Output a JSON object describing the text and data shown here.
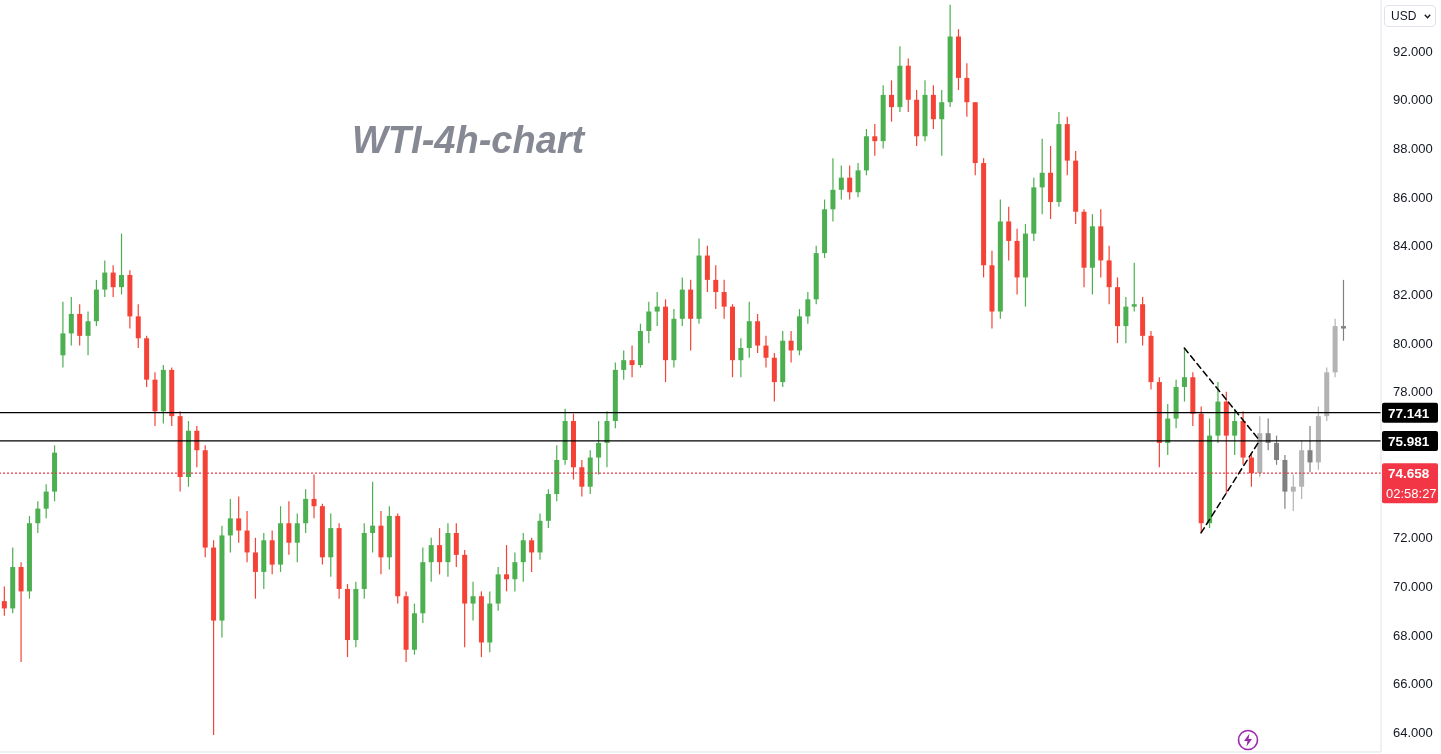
{
  "chart_data": {
    "type": "candlestick",
    "title": "WTI-4h-chart",
    "ylabel": "USD",
    "categories": [
      null,
      null,
      null,
      null,
      null,
      null,
      null,
      null,
      null,
      null,
      null,
      null,
      null,
      null,
      null,
      null,
      null,
      null,
      null,
      null,
      null,
      null,
      null,
      null,
      null,
      null,
      null,
      null,
      null,
      null,
      null,
      null,
      null,
      null,
      null,
      null,
      null,
      null,
      null,
      null,
      null,
      null,
      null,
      null,
      null,
      null,
      null,
      null,
      null,
      null,
      null,
      null,
      null,
      null,
      null,
      null,
      null,
      null,
      null,
      null,
      null,
      null,
      null,
      null,
      null,
      null,
      null,
      null,
      null,
      null,
      null,
      null,
      null,
      null,
      null,
      null,
      null,
      null,
      null,
      null,
      null,
      null,
      null,
      null,
      null,
      null,
      null,
      null,
      null,
      null,
      null,
      null,
      null,
      null,
      null,
      null,
      null,
      null,
      null,
      null,
      null,
      null,
      null,
      null,
      null,
      null,
      null,
      null,
      null,
      null,
      null,
      null,
      null,
      null,
      null,
      null,
      null,
      null,
      null,
      null,
      null,
      null,
      null,
      null,
      null,
      null,
      null,
      null,
      null,
      null,
      null,
      null,
      null,
      null,
      null,
      null,
      null,
      null,
      null,
      null,
      null,
      null,
      null,
      null,
      null,
      null,
      null,
      null,
      null,
      null,
      null,
      null,
      null,
      null,
      null,
      null,
      null,
      null,
      null,
      null,
      null,
      null,
      null,
      null,
      null
    ],
    "series": [
      {
        "ohlc": [
          [
            69.4,
            70.0,
            68.8,
            69.1
          ],
          [
            69.1,
            71.6,
            68.9,
            70.8
          ],
          [
            70.8,
            71.0,
            66.9,
            69.8
          ],
          [
            69.8,
            72.9,
            69.5,
            72.6
          ],
          [
            72.6,
            73.5,
            72.2,
            73.2
          ],
          [
            73.2,
            74.2,
            72.8,
            73.9
          ],
          [
            73.9,
            75.8,
            73.5,
            75.5
          ],
          [
            79.5,
            81.7,
            79.0,
            80.4
          ],
          [
            80.4,
            81.9,
            79.9,
            81.2
          ],
          [
            81.2,
            81.6,
            79.9,
            80.3
          ],
          [
            80.3,
            81.3,
            79.5,
            80.9
          ],
          [
            80.9,
            82.6,
            80.7,
            82.2
          ],
          [
            82.2,
            83.4,
            81.9,
            82.9
          ],
          [
            82.9,
            83.2,
            81.9,
            82.3
          ],
          [
            82.3,
            84.5,
            82.0,
            82.8
          ],
          [
            82.8,
            83.0,
            80.6,
            81.1
          ],
          [
            81.1,
            81.6,
            79.8,
            80.2
          ],
          [
            80.2,
            80.3,
            78.2,
            78.5
          ],
          [
            78.5,
            78.8,
            76.6,
            77.2
          ],
          [
            77.2,
            79.1,
            76.7,
            78.9
          ],
          [
            78.9,
            79.0,
            76.6,
            77.0
          ],
          [
            77.0,
            77.2,
            73.9,
            74.5
          ],
          [
            74.5,
            76.8,
            74.1,
            76.4
          ],
          [
            76.4,
            76.6,
            74.9,
            75.6
          ],
          [
            75.6,
            75.8,
            71.2,
            71.6
          ],
          [
            71.6,
            71.9,
            63.9,
            68.6
          ],
          [
            68.6,
            72.5,
            67.9,
            72.1
          ],
          [
            72.1,
            73.6,
            71.4,
            72.8
          ],
          [
            72.8,
            73.7,
            71.8,
            72.3
          ],
          [
            72.3,
            73.1,
            71.0,
            71.4
          ],
          [
            71.4,
            72.0,
            69.5,
            70.6
          ],
          [
            70.6,
            72.2,
            69.9,
            71.9
          ],
          [
            71.9,
            72.3,
            70.5,
            70.9
          ],
          [
            70.9,
            73.3,
            70.6,
            72.6
          ],
          [
            72.6,
            73.5,
            71.3,
            71.8
          ],
          [
            71.8,
            73.0,
            71.0,
            72.6
          ],
          [
            72.6,
            74.0,
            72.2,
            73.6
          ],
          [
            73.6,
            74.6,
            72.8,
            73.3
          ],
          [
            73.3,
            73.4,
            70.9,
            71.2
          ],
          [
            71.2,
            73.0,
            70.4,
            72.4
          ],
          [
            72.4,
            72.6,
            69.5,
            69.9
          ],
          [
            69.9,
            70.1,
            67.1,
            67.8
          ],
          [
            67.8,
            70.2,
            67.5,
            69.9
          ],
          [
            69.9,
            72.6,
            69.5,
            72.2
          ],
          [
            72.2,
            74.3,
            71.4,
            72.5
          ],
          [
            72.5,
            73.1,
            70.5,
            71.2
          ],
          [
            71.2,
            73.3,
            70.7,
            72.9
          ],
          [
            72.9,
            73.0,
            69.3,
            69.6
          ],
          [
            69.6,
            69.8,
            66.9,
            67.4
          ],
          [
            67.4,
            69.3,
            67.2,
            68.9
          ],
          [
            68.9,
            71.6,
            68.5,
            71.0
          ],
          [
            71.0,
            72.0,
            70.2,
            71.7
          ],
          [
            71.7,
            72.4,
            70.5,
            71.0
          ],
          [
            71.0,
            72.6,
            70.4,
            72.2
          ],
          [
            72.2,
            72.6,
            70.8,
            71.3
          ],
          [
            71.3,
            71.5,
            67.5,
            69.3
          ],
          [
            69.3,
            70.2,
            68.6,
            69.6
          ],
          [
            69.6,
            69.8,
            67.1,
            67.7
          ],
          [
            67.7,
            69.8,
            67.3,
            69.3
          ],
          [
            69.3,
            70.8,
            69.0,
            70.5
          ],
          [
            70.5,
            71.7,
            69.8,
            70.3
          ],
          [
            70.3,
            71.4,
            69.8,
            71.0
          ],
          [
            71.0,
            72.2,
            70.2,
            71.9
          ],
          [
            71.9,
            72.0,
            70.6,
            71.4
          ],
          [
            71.4,
            73.0,
            71.1,
            72.7
          ],
          [
            72.7,
            74.0,
            72.4,
            73.8
          ],
          [
            73.8,
            75.8,
            73.5,
            75.2
          ],
          [
            75.2,
            77.3,
            75.0,
            76.8
          ],
          [
            76.8,
            77.1,
            74.4,
            74.9
          ],
          [
            74.9,
            75.2,
            73.7,
            74.1
          ],
          [
            74.1,
            75.6,
            73.8,
            75.3
          ],
          [
            75.3,
            76.8,
            74.6,
            75.9
          ],
          [
            75.9,
            77.2,
            74.9,
            76.8
          ],
          [
            76.8,
            79.2,
            76.5,
            78.9
          ],
          [
            78.9,
            79.7,
            78.5,
            79.3
          ],
          [
            79.3,
            79.9,
            78.6,
            79.1
          ],
          [
            79.1,
            80.8,
            79.0,
            80.5
          ],
          [
            80.5,
            81.7,
            80.0,
            81.3
          ],
          [
            81.3,
            82.1,
            80.7,
            81.5
          ],
          [
            81.5,
            81.8,
            78.4,
            79.3
          ],
          [
            79.3,
            81.4,
            79.0,
            81.0
          ],
          [
            81.0,
            82.7,
            80.7,
            82.2
          ],
          [
            82.2,
            82.6,
            79.7,
            81.0
          ],
          [
            81.0,
            84.3,
            80.8,
            83.6
          ],
          [
            83.6,
            84.0,
            82.1,
            82.6
          ],
          [
            82.6,
            83.2,
            81.4,
            82.1
          ],
          [
            82.1,
            82.6,
            81.0,
            81.5
          ],
          [
            81.5,
            81.6,
            78.6,
            79.3
          ],
          [
            79.3,
            80.2,
            78.6,
            79.8
          ],
          [
            79.8,
            81.7,
            79.4,
            80.9
          ],
          [
            80.9,
            81.2,
            79.6,
            79.9
          ],
          [
            79.9,
            80.3,
            79.0,
            79.4
          ],
          [
            79.4,
            79.6,
            77.6,
            78.4
          ],
          [
            78.4,
            80.5,
            78.2,
            80.1
          ],
          [
            80.1,
            80.5,
            79.2,
            79.7
          ],
          [
            79.7,
            81.4,
            79.5,
            81.1
          ],
          [
            81.1,
            82.1,
            80.8,
            81.8
          ],
          [
            81.8,
            84.0,
            81.6,
            83.7
          ],
          [
            83.7,
            85.9,
            83.5,
            85.5
          ],
          [
            85.5,
            87.6,
            85.0,
            86.3
          ],
          [
            86.3,
            87.3,
            85.9,
            86.8
          ],
          [
            86.8,
            87.3,
            85.9,
            86.2
          ],
          [
            86.2,
            87.4,
            86.0,
            87.1
          ],
          [
            87.1,
            88.8,
            86.9,
            88.5
          ],
          [
            88.5,
            89.0,
            87.7,
            88.3
          ],
          [
            88.3,
            90.6,
            88.0,
            90.2
          ],
          [
            90.2,
            90.8,
            89.1,
            89.7
          ],
          [
            89.7,
            92.2,
            89.5,
            91.4
          ],
          [
            91.4,
            91.7,
            89.5,
            90.0
          ],
          [
            90.0,
            90.4,
            88.1,
            88.5
          ],
          [
            88.5,
            90.8,
            88.3,
            90.2
          ],
          [
            90.2,
            90.6,
            88.8,
            89.2
          ],
          [
            89.2,
            90.4,
            87.7,
            89.9
          ],
          [
            89.9,
            93.9,
            89.7,
            92.6
          ],
          [
            92.6,
            92.9,
            90.4,
            90.9
          ],
          [
            90.9,
            91.5,
            89.3,
            89.9
          ],
          [
            89.9,
            89.9,
            86.9,
            87.4
          ],
          [
            87.4,
            87.6,
            82.7,
            83.2
          ],
          [
            83.2,
            83.8,
            80.6,
            81.3
          ],
          [
            81.3,
            85.9,
            81.0,
            85.0
          ],
          [
            85.0,
            85.6,
            83.4,
            84.2
          ],
          [
            84.2,
            84.7,
            82.0,
            82.7
          ],
          [
            82.7,
            84.9,
            81.5,
            84.5
          ],
          [
            84.5,
            86.8,
            84.2,
            86.4
          ],
          [
            86.4,
            88.4,
            85.3,
            87.0
          ],
          [
            87.0,
            88.1,
            85.1,
            85.8
          ],
          [
            85.8,
            89.5,
            85.6,
            89.0
          ],
          [
            89.0,
            89.3,
            86.9,
            87.5
          ],
          [
            87.5,
            87.9,
            84.9,
            85.4
          ],
          [
            85.4,
            85.5,
            82.3,
            83.1
          ],
          [
            83.1,
            85.3,
            82.0,
            84.8
          ],
          [
            84.8,
            85.5,
            82.7,
            83.4
          ],
          [
            83.4,
            84.0,
            81.6,
            82.3
          ],
          [
            82.3,
            82.7,
            80.0,
            80.7
          ],
          [
            80.7,
            81.9,
            80.0,
            81.5
          ],
          [
            81.5,
            83.3,
            81.3,
            81.6
          ],
          [
            81.6,
            81.9,
            79.9,
            80.3
          ],
          [
            80.3,
            80.5,
            78.1,
            78.4
          ],
          [
            78.4,
            78.6,
            74.9,
            75.9
          ],
          [
            75.9,
            77.5,
            75.4,
            76.9
          ],
          [
            76.9,
            78.5,
            76.5,
            78.2
          ],
          [
            78.2,
            79.8,
            77.6,
            78.6
          ],
          [
            78.6,
            78.8,
            76.6,
            77.1
          ],
          [
            77.1,
            77.4,
            72.2,
            72.6
          ],
          [
            72.6,
            76.9,
            72.4,
            76.2
          ],
          [
            76.2,
            78.4,
            75.9,
            77.6
          ],
          [
            77.6,
            78.0,
            73.8,
            76.2
          ],
          [
            76.2,
            77.3,
            75.4,
            76.8
          ],
          [
            76.8,
            77.2,
            75.0,
            75.3
          ],
          [
            75.3,
            75.5,
            74.1,
            74.658
          ],
          null,
          null,
          null,
          null,
          null,
          null,
          null,
          null,
          null,
          null,
          null,
          null,
          null,
          null,
          null
        ],
        "colors": [
          "#f44336",
          "#4caf50",
          "#f44336",
          "#4caf50",
          "#4caf50",
          "#4caf50",
          "#4caf50",
          "#4caf50",
          "#4caf50",
          "#f44336",
          "#4caf50",
          "#4caf50",
          "#4caf50",
          "#f44336",
          "#4caf50",
          "#f44336",
          "#f44336",
          "#f44336",
          "#f44336",
          "#4caf50",
          "#f44336",
          "#f44336",
          "#4caf50",
          "#f44336",
          "#f44336",
          "#f44336",
          "#4caf50",
          "#4caf50",
          "#f44336",
          "#f44336",
          "#f44336",
          "#4caf50",
          "#f44336",
          "#4caf50",
          "#f44336",
          "#4caf50",
          "#4caf50",
          "#f44336",
          "#f44336",
          "#4caf50",
          "#f44336",
          "#f44336",
          "#4caf50",
          "#4caf50",
          "#4caf50",
          "#f44336",
          "#4caf50",
          "#f44336",
          "#f44336",
          "#4caf50",
          "#4caf50",
          "#4caf50",
          "#f44336",
          "#4caf50",
          "#f44336",
          "#f44336",
          "#4caf50",
          "#f44336",
          "#4caf50",
          "#4caf50",
          "#f44336",
          "#4caf50",
          "#4caf50",
          "#f44336",
          "#4caf50",
          "#4caf50",
          "#4caf50",
          "#4caf50",
          "#f44336",
          "#f44336",
          "#4caf50",
          "#4caf50",
          "#4caf50",
          "#4caf50",
          "#4caf50",
          "#f44336",
          "#4caf50",
          "#4caf50",
          "#4caf50",
          "#f44336",
          "#4caf50",
          "#4caf50",
          "#f44336",
          "#4caf50",
          "#f44336",
          "#f44336",
          "#f44336",
          "#f44336",
          "#4caf50",
          "#4caf50",
          "#f44336",
          "#f44336",
          "#f44336",
          "#4caf50",
          "#f44336",
          "#4caf50",
          "#4caf50",
          "#4caf50",
          "#4caf50",
          "#4caf50",
          "#4caf50",
          "#f44336",
          "#4caf50",
          "#4caf50",
          "#f44336",
          "#4caf50",
          "#f44336",
          "#4caf50",
          "#f44336",
          "#f44336",
          "#4caf50",
          "#f44336",
          "#4caf50",
          "#4caf50",
          "#f44336",
          "#f44336",
          "#f44336",
          "#f44336",
          "#f44336",
          "#4caf50",
          "#f44336",
          "#f44336",
          "#4caf50",
          "#4caf50",
          "#4caf50",
          "#f44336",
          "#4caf50",
          "#f44336",
          "#f44336",
          "#f44336",
          "#4caf50",
          "#f44336",
          "#f44336",
          "#f44336",
          "#4caf50",
          "#4caf50",
          "#f44336",
          "#f44336",
          "#f44336",
          "#4caf50",
          "#4caf50",
          "#4caf50",
          "#f44336",
          "#f44336",
          "#4caf50",
          "#4caf50",
          "#f44336",
          "#4caf50",
          "#f44336",
          "#f44336",
          null,
          null,
          null,
          null,
          null,
          null,
          null,
          null,
          null,
          null,
          null,
          null,
          null,
          null,
          null
        ]
      },
      {
        "ohlc": [
          null,
          null,
          null,
          null,
          null,
          null,
          null,
          null,
          null,
          null,
          null,
          null,
          null,
          null,
          null,
          null,
          null,
          null,
          null,
          null,
          null,
          null,
          null,
          null,
          null,
          null,
          null,
          null,
          null,
          null,
          null,
          null,
          null,
          null,
          null,
          null,
          null,
          null,
          null,
          null,
          null,
          null,
          null,
          null,
          null,
          null,
          null,
          null,
          null,
          null,
          null,
          null,
          null,
          null,
          null,
          null,
          null,
          null,
          null,
          null,
          null,
          null,
          null,
          null,
          null,
          null,
          null,
          null,
          null,
          null,
          null,
          null,
          null,
          null,
          null,
          null,
          null,
          null,
          null,
          null,
          null,
          null,
          null,
          null,
          null,
          null,
          null,
          null,
          null,
          null,
          null,
          null,
          null,
          null,
          null,
          null,
          null,
          null,
          null,
          null,
          null,
          null,
          null,
          null,
          null,
          null,
          null,
          null,
          null,
          null,
          null,
          null,
          null,
          null,
          null,
          null,
          null,
          null,
          null,
          null,
          null,
          null,
          null,
          null,
          null,
          null,
          null,
          null,
          null,
          null,
          null,
          null,
          null,
          null,
          null,
          null,
          null,
          null,
          null,
          null,
          null,
          null,
          null,
          null,
          null,
          null,
          null,
          null,
          null,
          null,
          [
            74.658,
            77.0,
            74.5,
            76.3
          ],
          [
            76.3,
            76.9,
            75.6,
            75.9
          ],
          [
            75.9,
            76.2,
            75.0,
            75.2
          ],
          [
            75.2,
            75.4,
            73.2,
            73.9
          ],
          [
            73.9,
            74.6,
            73.1,
            74.1
          ],
          [
            74.1,
            76.0,
            73.6,
            75.6
          ],
          [
            75.6,
            76.6,
            74.7,
            75.1
          ],
          [
            75.1,
            77.4,
            74.8,
            77.0
          ],
          [
            77.0,
            79.0,
            76.8,
            78.8
          ],
          [
            78.8,
            81.0,
            78.6,
            80.7
          ],
          [
            80.7,
            82.6,
            80.1,
            80.6
          ],
          null,
          null,
          null,
          null
        ],
        "colors": [
          null,
          null,
          null,
          null,
          null,
          null,
          null,
          null,
          null,
          null,
          null,
          null,
          null,
          null,
          null,
          null,
          null,
          null,
          null,
          null,
          null,
          null,
          null,
          null,
          null,
          null,
          null,
          null,
          null,
          null,
          null,
          null,
          null,
          null,
          null,
          null,
          null,
          null,
          null,
          null,
          null,
          null,
          null,
          null,
          null,
          null,
          null,
          null,
          null,
          null,
          null,
          null,
          null,
          null,
          null,
          null,
          null,
          null,
          null,
          null,
          null,
          null,
          null,
          null,
          null,
          null,
          null,
          null,
          null,
          null,
          null,
          null,
          null,
          null,
          null,
          null,
          null,
          null,
          null,
          null,
          null,
          null,
          null,
          null,
          null,
          null,
          null,
          null,
          null,
          null,
          null,
          null,
          null,
          null,
          null,
          null,
          null,
          null,
          null,
          null,
          null,
          null,
          null,
          null,
          null,
          null,
          null,
          null,
          null,
          null,
          null,
          null,
          null,
          null,
          null,
          null,
          null,
          null,
          null,
          null,
          null,
          null,
          null,
          null,
          null,
          null,
          null,
          null,
          null,
          null,
          null,
          null,
          null,
          null,
          null,
          null,
          null,
          null,
          null,
          null,
          null,
          null,
          null,
          null,
          null,
          null,
          null,
          null,
          null,
          null,
          "#b3b3b3",
          "#808080",
          "#808080",
          "#808080",
          "#b3b3b3",
          "#b3b3b3",
          "#808080",
          "#b3b3b3",
          "#b3b3b3",
          "#b3b3b3",
          "#808080",
          null,
          null,
          null,
          null
        ]
      },
      {
        "type": "line",
        "color": "#000000",
        "line_style": "dashed",
        "values": [
          null,
          null,
          null,
          null,
          null,
          null,
          null,
          null,
          null,
          null,
          null,
          null,
          null,
          null,
          null,
          null,
          null,
          null,
          null,
          null,
          null,
          null,
          null,
          null,
          null,
          null,
          null,
          null,
          null,
          null,
          null,
          null,
          null,
          null,
          null,
          null,
          null,
          null,
          null,
          null,
          null,
          null,
          null,
          null,
          null,
          null,
          null,
          null,
          null,
          null,
          null,
          null,
          null,
          null,
          null,
          null,
          null,
          null,
          null,
          null,
          null,
          null,
          null,
          null,
          null,
          null,
          null,
          null,
          null,
          null,
          null,
          null,
          null,
          null,
          null,
          null,
          null,
          null,
          null,
          null,
          null,
          null,
          null,
          null,
          null,
          null,
          null,
          null,
          null,
          null,
          null,
          null,
          null,
          null,
          null,
          null,
          null,
          null,
          null,
          null,
          null,
          null,
          null,
          null,
          null,
          null,
          null,
          null,
          null,
          null,
          null,
          null,
          null,
          null,
          null,
          null,
          null,
          null,
          null,
          null,
          null,
          null,
          null,
          null,
          null,
          null,
          null,
          null,
          null,
          null,
          null,
          null,
          null,
          null,
          null,
          null,
          null,
          null,
          null,
          null,
          null,
          79.8,
          null,
          null,
          null,
          null,
          null,
          null,
          null,
          null,
          76.0,
          null,
          null,
          null,
          null,
          null,
          null,
          null,
          null,
          null,
          null,
          null,
          null,
          null,
          null
        ]
      },
      {
        "type": "line",
        "color": "#000000",
        "line_style": "dashed",
        "values": [
          null,
          null,
          null,
          null,
          null,
          null,
          null,
          null,
          null,
          null,
          null,
          null,
          null,
          null,
          null,
          null,
          null,
          null,
          null,
          null,
          null,
          null,
          null,
          null,
          null,
          null,
          null,
          null,
          null,
          null,
          null,
          null,
          null,
          null,
          null,
          null,
          null,
          null,
          null,
          null,
          null,
          null,
          null,
          null,
          null,
          null,
          null,
          null,
          null,
          null,
          null,
          null,
          null,
          null,
          null,
          null,
          null,
          null,
          null,
          null,
          null,
          null,
          null,
          null,
          null,
          null,
          null,
          null,
          null,
          null,
          null,
          null,
          null,
          null,
          null,
          null,
          null,
          null,
          null,
          null,
          null,
          null,
          null,
          null,
          null,
          null,
          null,
          null,
          null,
          null,
          null,
          null,
          null,
          null,
          null,
          null,
          null,
          null,
          null,
          null,
          null,
          null,
          null,
          null,
          null,
          null,
          null,
          null,
          null,
          null,
          null,
          null,
          null,
          null,
          null,
          null,
          null,
          null,
          null,
          null,
          null,
          null,
          null,
          null,
          null,
          null,
          null,
          null,
          null,
          null,
          null,
          null,
          null,
          null,
          null,
          null,
          null,
          null,
          null,
          null,
          null,
          null,
          null,
          72.2,
          null,
          null,
          null,
          null,
          null,
          null,
          76.0,
          null,
          null,
          null,
          null,
          null,
          null,
          null,
          null,
          null,
          null,
          null,
          null,
          null,
          null
        ]
      }
    ],
    "ylim": [
      63.2,
      94.1
    ],
    "yticks": [
      {
        "value": 64,
        "label": "64.000"
      },
      {
        "value": 66,
        "label": "66.000"
      },
      {
        "value": 68,
        "label": "68.000"
      },
      {
        "value": 70,
        "label": "70.000"
      },
      {
        "value": 72,
        "label": "72.000"
      },
      {
        "value": 78,
        "label": "78.000"
      },
      {
        "value": 80,
        "label": "80.000"
      },
      {
        "value": 82,
        "label": "82.000"
      },
      {
        "value": 84,
        "label": "84.000"
      },
      {
        "value": 86,
        "label": "86.000"
      },
      {
        "value": 88,
        "label": "88.000"
      },
      {
        "value": 90,
        "label": "90.000"
      },
      {
        "value": 92,
        "label": "92.000"
      }
    ],
    "tick_labels": "y",
    "ref_lines": [
      {
        "axis": "y",
        "value": 77.141,
        "label": "77.141",
        "color": "#000000"
      },
      {
        "axis": "y",
        "value": 75.981,
        "label": "75.981",
        "color": "#000000"
      },
      {
        "axis": "y",
        "value": 74.658,
        "label": "74.658",
        "color": "#f23645",
        "line_style": "dotted"
      }
    ],
    "annotations": [
      "02:58:27"
    ]
  }
}
